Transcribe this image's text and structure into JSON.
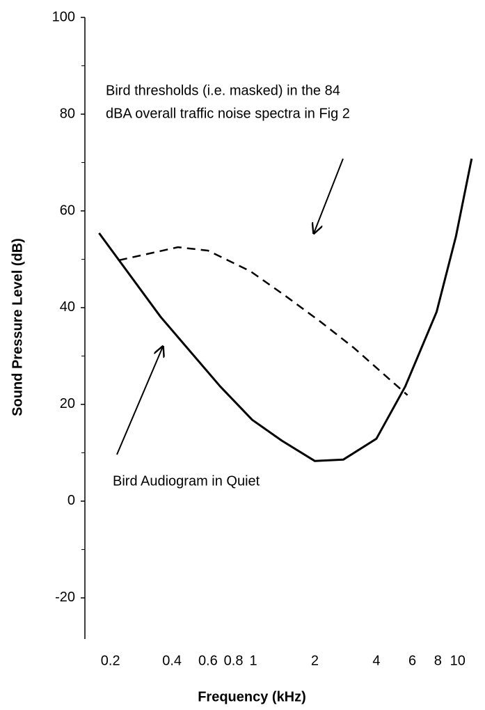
{
  "chart_data": {
    "type": "line",
    "xlabel": "Frequency (kHz)",
    "ylabel": "Sound Pressure Level (dB)",
    "xscale": "log",
    "xlim": [
      0.15,
      13.6
    ],
    "ylim": [
      -28.5,
      100
    ],
    "xticks": [
      0.2,
      0.4,
      0.6,
      0.8,
      1,
      2,
      4,
      6,
      8,
      10
    ],
    "yticks": [
      100,
      80,
      60,
      40,
      20,
      0,
      -20
    ],
    "yminor_ticks": [
      90,
      70,
      50,
      30,
      10,
      -10
    ],
    "series": [
      {
        "color": "#000000",
        "dash": false,
        "x": [
          0.176,
          0.352,
          0.689,
          0.988,
          1.38,
          2,
          2.76,
          4,
          5.54,
          7.88,
          9.8,
          11.7
        ],
        "values": [
          55.4,
          38.1,
          23.7,
          16.8,
          12.5,
          8.3,
          8.6,
          12.9,
          23.7,
          39.1,
          54.7,
          70.8
        ]
      },
      {
        "color": "#000000",
        "dash": true,
        "x": [
          0.22,
          0.428,
          0.6,
          0.97,
          1.44,
          2.13,
          3.1,
          5.68
        ],
        "values": [
          49.8,
          52.5,
          51.8,
          47.5,
          42.4,
          37.1,
          31.7,
          21.9
        ]
      }
    ],
    "annotations": [
      "Bird thresholds (i.e. masked) in the 84",
      "dBA overall traffic noise spectra in Fig  2",
      "Bird Audiogram in Quiet"
    ]
  }
}
